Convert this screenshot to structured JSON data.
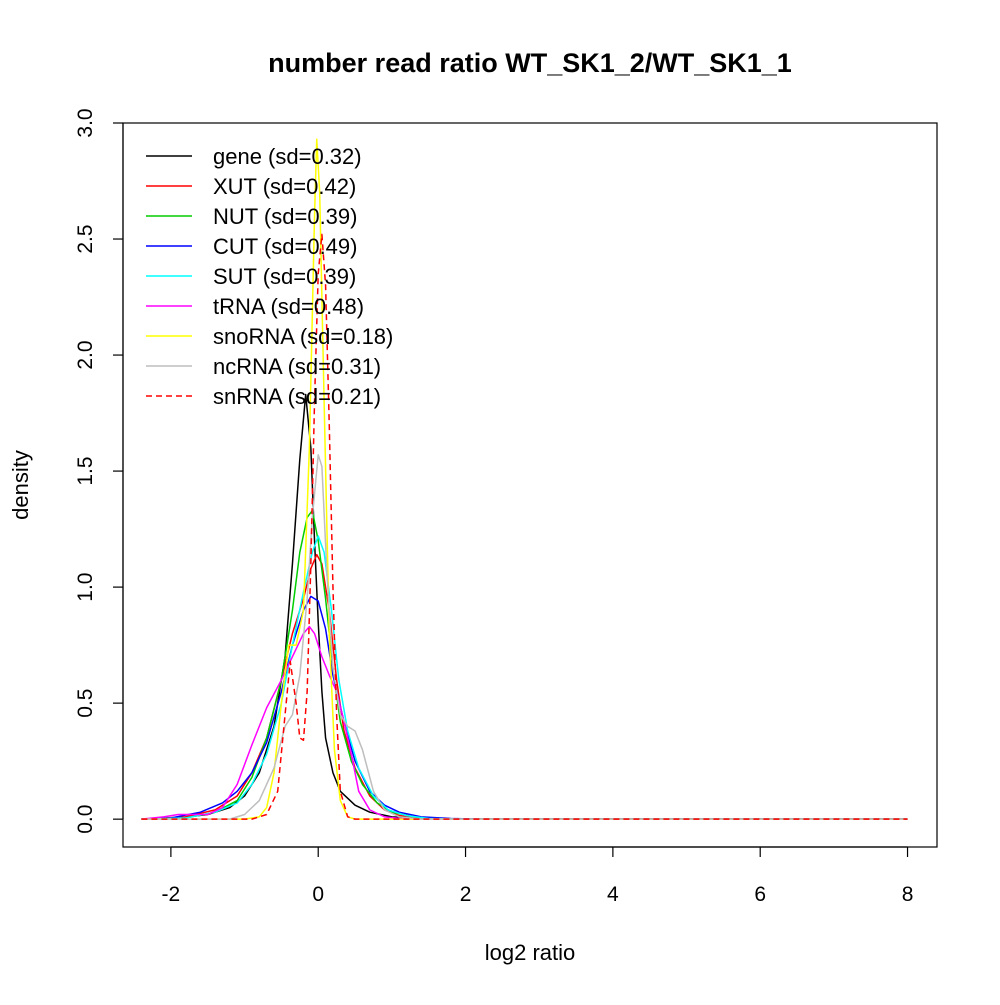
{
  "chart_data": {
    "type": "line",
    "title": "number read ratio WT_SK1_2/WT_SK1_1",
    "xlabel": "log2 ratio",
    "ylabel": "density",
    "xlim": [
      -2.65,
      8.4
    ],
    "ylim": [
      -0.12,
      3.0
    ],
    "xticks": [
      -2,
      0,
      2,
      4,
      6,
      8
    ],
    "yticks": [
      0.0,
      0.5,
      1.0,
      1.5,
      2.0,
      2.5,
      3.0
    ],
    "xtick_labels": [
      "-2",
      "0",
      "2",
      "4",
      "6",
      "8"
    ],
    "ytick_labels": [
      "0.0",
      "0.5",
      "1.0",
      "1.5",
      "2.0",
      "2.5",
      "3.0"
    ],
    "grid": false,
    "legend_position": "top-left",
    "series": [
      {
        "name": "gene (sd=0.32)",
        "color": "#000000",
        "dash": "solid",
        "points": [
          [
            -2.4,
            0
          ],
          [
            -1.9,
            0.005
          ],
          [
            -1.5,
            0.02
          ],
          [
            -1.2,
            0.05
          ],
          [
            -1.0,
            0.1
          ],
          [
            -0.8,
            0.2
          ],
          [
            -0.6,
            0.4
          ],
          [
            -0.45,
            0.7
          ],
          [
            -0.35,
            1.1
          ],
          [
            -0.25,
            1.55
          ],
          [
            -0.17,
            1.83
          ],
          [
            -0.1,
            1.6
          ],
          [
            -0.05,
            1.2
          ],
          [
            0.0,
            0.85
          ],
          [
            0.05,
            0.55
          ],
          [
            0.1,
            0.35
          ],
          [
            0.2,
            0.2
          ],
          [
            0.3,
            0.12
          ],
          [
            0.5,
            0.06
          ],
          [
            0.7,
            0.03
          ],
          [
            1.0,
            0.01
          ],
          [
            1.5,
            0.002
          ],
          [
            2.0,
            0
          ],
          [
            8.0,
            0
          ]
        ]
      },
      {
        "name": "XUT (sd=0.42)",
        "color": "#ff0000",
        "dash": "solid",
        "points": [
          [
            -2.4,
            0
          ],
          [
            -1.8,
            0.01
          ],
          [
            -1.4,
            0.04
          ],
          [
            -1.1,
            0.1
          ],
          [
            -0.9,
            0.2
          ],
          [
            -0.7,
            0.35
          ],
          [
            -0.5,
            0.6
          ],
          [
            -0.35,
            0.8
          ],
          [
            -0.2,
            0.95
          ],
          [
            -0.1,
            1.08
          ],
          [
            -0.02,
            1.14
          ],
          [
            0.05,
            1.1
          ],
          [
            0.15,
            0.9
          ],
          [
            0.25,
            0.6
          ],
          [
            0.35,
            0.38
          ],
          [
            0.5,
            0.22
          ],
          [
            0.7,
            0.1
          ],
          [
            0.9,
            0.04
          ],
          [
            1.1,
            0.015
          ],
          [
            1.4,
            0.005
          ],
          [
            2.0,
            0
          ],
          [
            8.0,
            0
          ]
        ]
      },
      {
        "name": "NUT (sd=0.39)",
        "color": "#00cd00",
        "dash": "solid",
        "points": [
          [
            -2.4,
            0
          ],
          [
            -1.8,
            0.005
          ],
          [
            -1.4,
            0.03
          ],
          [
            -1.1,
            0.08
          ],
          [
            -0.9,
            0.18
          ],
          [
            -0.7,
            0.35
          ],
          [
            -0.5,
            0.6
          ],
          [
            -0.35,
            0.9
          ],
          [
            -0.25,
            1.15
          ],
          [
            -0.15,
            1.3
          ],
          [
            -0.08,
            1.33
          ],
          [
            0.0,
            1.2
          ],
          [
            0.1,
            0.95
          ],
          [
            0.2,
            0.65
          ],
          [
            0.3,
            0.42
          ],
          [
            0.45,
            0.25
          ],
          [
            0.6,
            0.15
          ],
          [
            0.8,
            0.07
          ],
          [
            1.0,
            0.03
          ],
          [
            1.3,
            0.01
          ],
          [
            1.6,
            0
          ],
          [
            8.0,
            0
          ]
        ]
      },
      {
        "name": "CUT (sd=0.49)",
        "color": "#0000ff",
        "dash": "solid",
        "points": [
          [
            -2.4,
            0
          ],
          [
            -2.0,
            0.005
          ],
          [
            -1.6,
            0.03
          ],
          [
            -1.3,
            0.07
          ],
          [
            -1.1,
            0.12
          ],
          [
            -0.9,
            0.2
          ],
          [
            -0.7,
            0.33
          ],
          [
            -0.5,
            0.55
          ],
          [
            -0.35,
            0.75
          ],
          [
            -0.2,
            0.9
          ],
          [
            -0.1,
            0.96
          ],
          [
            0.0,
            0.94
          ],
          [
            0.1,
            0.82
          ],
          [
            0.2,
            0.62
          ],
          [
            0.35,
            0.42
          ],
          [
            0.5,
            0.25
          ],
          [
            0.7,
            0.12
          ],
          [
            0.9,
            0.06
          ],
          [
            1.1,
            0.03
          ],
          [
            1.4,
            0.01
          ],
          [
            1.8,
            0.003
          ],
          [
            2.2,
            0
          ],
          [
            8.0,
            0
          ]
        ]
      },
      {
        "name": "SUT (sd=0.39)",
        "color": "#00ffff",
        "dash": "solid",
        "points": [
          [
            -2.4,
            0
          ],
          [
            -1.8,
            0.005
          ],
          [
            -1.4,
            0.03
          ],
          [
            -1.1,
            0.07
          ],
          [
            -0.9,
            0.15
          ],
          [
            -0.7,
            0.28
          ],
          [
            -0.5,
            0.5
          ],
          [
            -0.35,
            0.75
          ],
          [
            -0.2,
            0.98
          ],
          [
            -0.08,
            1.15
          ],
          [
            0.0,
            1.22
          ],
          [
            0.08,
            1.15
          ],
          [
            0.18,
            0.9
          ],
          [
            0.28,
            0.6
          ],
          [
            0.4,
            0.38
          ],
          [
            0.55,
            0.22
          ],
          [
            0.75,
            0.1
          ],
          [
            0.95,
            0.04
          ],
          [
            1.2,
            0.015
          ],
          [
            1.5,
            0.003
          ],
          [
            2.0,
            0
          ],
          [
            8.0,
            0
          ]
        ]
      },
      {
        "name": "tRNA (sd=0.48)",
        "color": "#ff00ff",
        "dash": "solid",
        "points": [
          [
            -2.4,
            0
          ],
          [
            -2.1,
            0.01
          ],
          [
            -1.9,
            0.02
          ],
          [
            -1.7,
            0.02
          ],
          [
            -1.5,
            0.02
          ],
          [
            -1.3,
            0.05
          ],
          [
            -1.1,
            0.15
          ],
          [
            -0.9,
            0.32
          ],
          [
            -0.7,
            0.48
          ],
          [
            -0.5,
            0.6
          ],
          [
            -0.35,
            0.7
          ],
          [
            -0.2,
            0.8
          ],
          [
            -0.12,
            0.83
          ],
          [
            -0.05,
            0.8
          ],
          [
            0.05,
            0.7
          ],
          [
            0.15,
            0.62
          ],
          [
            0.25,
            0.55
          ],
          [
            0.35,
            0.42
          ],
          [
            0.45,
            0.28
          ],
          [
            0.55,
            0.12
          ],
          [
            0.7,
            0.04
          ],
          [
            0.9,
            0.01
          ],
          [
            1.2,
            0
          ],
          [
            8.0,
            0
          ]
        ]
      },
      {
        "name": "snoRNA (sd=0.18)",
        "color": "#ffff00",
        "dash": "solid",
        "points": [
          [
            -2.4,
            0
          ],
          [
            -1.0,
            0
          ],
          [
            -0.8,
            0.01
          ],
          [
            -0.7,
            0.05
          ],
          [
            -0.6,
            0.2
          ],
          [
            -0.5,
            0.5
          ],
          [
            -0.4,
            0.75
          ],
          [
            -0.3,
            0.75
          ],
          [
            -0.2,
            0.9
          ],
          [
            -0.12,
            1.6
          ],
          [
            -0.05,
            2.6
          ],
          [
            -0.02,
            2.93
          ],
          [
            0.02,
            2.7
          ],
          [
            0.08,
            1.8
          ],
          [
            0.15,
            0.8
          ],
          [
            0.22,
            0.3
          ],
          [
            0.3,
            0.08
          ],
          [
            0.4,
            0.01
          ],
          [
            0.5,
            0
          ],
          [
            8.0,
            0
          ]
        ]
      },
      {
        "name": "ncRNA (sd=0.31)",
        "color": "#bebebe",
        "dash": "solid",
        "points": [
          [
            -2.4,
            0
          ],
          [
            -1.2,
            0
          ],
          [
            -1.0,
            0.02
          ],
          [
            -0.8,
            0.08
          ],
          [
            -0.6,
            0.22
          ],
          [
            -0.45,
            0.4
          ],
          [
            -0.35,
            0.45
          ],
          [
            -0.25,
            0.62
          ],
          [
            -0.15,
            0.95
          ],
          [
            -0.08,
            1.3
          ],
          [
            0.0,
            1.57
          ],
          [
            0.05,
            1.52
          ],
          [
            0.12,
            1.05
          ],
          [
            0.2,
            0.65
          ],
          [
            0.3,
            0.45
          ],
          [
            0.4,
            0.4
          ],
          [
            0.5,
            0.38
          ],
          [
            0.6,
            0.3
          ],
          [
            0.75,
            0.12
          ],
          [
            0.9,
            0.04
          ],
          [
            1.1,
            0.01
          ],
          [
            1.4,
            0
          ],
          [
            8.0,
            0
          ]
        ]
      },
      {
        "name": "snRNA (sd=0.21)",
        "color": "#ff0000",
        "dash": "dashed",
        "points": [
          [
            -2.4,
            0
          ],
          [
            -0.9,
            0
          ],
          [
            -0.7,
            0.02
          ],
          [
            -0.55,
            0.12
          ],
          [
            -0.45,
            0.45
          ],
          [
            -0.38,
            0.68
          ],
          [
            -0.3,
            0.5
          ],
          [
            -0.25,
            0.35
          ],
          [
            -0.2,
            0.34
          ],
          [
            -0.15,
            0.55
          ],
          [
            -0.1,
            1.1
          ],
          [
            -0.05,
            1.8
          ],
          [
            0.0,
            2.35
          ],
          [
            0.05,
            2.52
          ],
          [
            0.1,
            2.3
          ],
          [
            0.15,
            1.7
          ],
          [
            0.2,
            1.0
          ],
          [
            0.25,
            0.45
          ],
          [
            0.3,
            0.12
          ],
          [
            0.4,
            0.01
          ],
          [
            0.5,
            0
          ],
          [
            8.0,
            0
          ]
        ]
      }
    ]
  }
}
